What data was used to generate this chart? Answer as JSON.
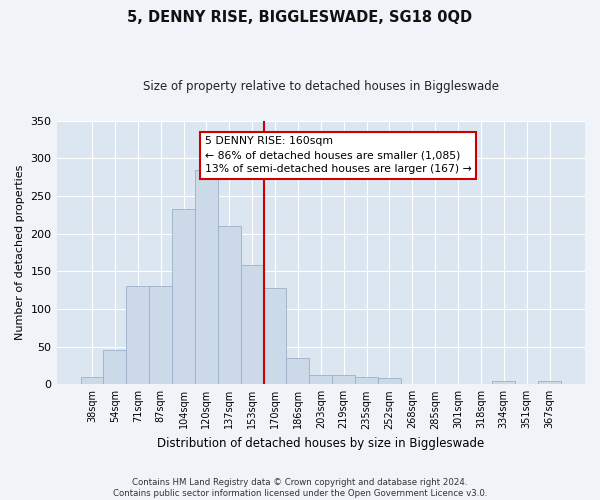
{
  "title": "5, DENNY RISE, BIGGLESWADE, SG18 0QD",
  "subtitle": "Size of property relative to detached houses in Biggleswade",
  "xlabel": "Distribution of detached houses by size in Biggleswade",
  "ylabel": "Number of detached properties",
  "bar_labels": [
    "38sqm",
    "54sqm",
    "71sqm",
    "87sqm",
    "104sqm",
    "120sqm",
    "137sqm",
    "153sqm",
    "170sqm",
    "186sqm",
    "203sqm",
    "219sqm",
    "235sqm",
    "252sqm",
    "268sqm",
    "285sqm",
    "301sqm",
    "318sqm",
    "334sqm",
    "351sqm",
    "367sqm"
  ],
  "bar_heights": [
    10,
    45,
    130,
    130,
    232,
    285,
    210,
    158,
    128,
    35,
    12,
    12,
    10,
    8,
    0,
    0,
    0,
    0,
    4,
    0,
    4
  ],
  "bar_color": "#ccd9e8",
  "bar_edge_color": "#9bb0c8",
  "vline_after_index": 7,
  "vline_color": "#cc0000",
  "annotation_text": "5 DENNY RISE: 160sqm\n← 86% of detached houses are smaller (1,085)\n13% of semi-detached houses are larger (167) →",
  "annotation_box_color": "#ffffff",
  "annotation_box_edge_color": "#cc0000",
  "ylim": [
    0,
    350
  ],
  "yticks": [
    0,
    50,
    100,
    150,
    200,
    250,
    300,
    350
  ],
  "fig_bg_color": "#f0f4f8",
  "ax_bg_color": "#dce6f0",
  "grid_color": "#ffffff",
  "footer_line1": "Contains HM Land Registry data © Crown copyright and database right 2024.",
  "footer_line2": "Contains public sector information licensed under the Open Government Licence v3.0."
}
